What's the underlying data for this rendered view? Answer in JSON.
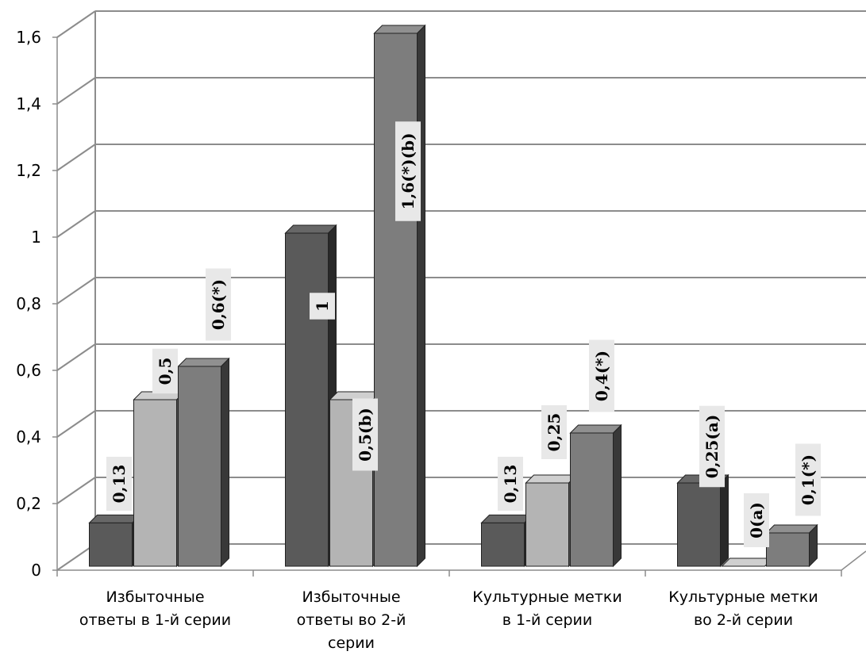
{
  "chart_data": {
    "type": "bar",
    "title": "",
    "xlabel": "",
    "ylabel": "",
    "ylim": [
      0,
      1.6
    ],
    "yticks": [
      "0",
      "0,2",
      "0,4",
      "0,6",
      "0,8",
      "1",
      "1,2",
      "1,4",
      "1,6"
    ],
    "grid": true,
    "three_d": true,
    "categories": [
      [
        "Избыточные",
        "ответы в 1-й серии"
      ],
      [
        "Избыточные",
        "ответы во 2-й",
        "серии"
      ],
      [
        "Культурные метки",
        "в 1-й серии"
      ],
      [
        "Культурные метки",
        "во 2-й серии"
      ]
    ],
    "series": [
      {
        "color": "#5a5a5a",
        "values": [
          0.13,
          1.0,
          0.13,
          0.25
        ],
        "labels": [
          "0,13",
          "1",
          "0,13",
          "0,25(a)"
        ]
      },
      {
        "color": "#b4b4b4",
        "values": [
          0.5,
          0.5,
          0.25,
          0.0
        ],
        "labels": [
          "0,5",
          "0,5(b)",
          "0,25",
          "0(a)"
        ]
      },
      {
        "color": "#7d7d7d",
        "values": [
          0.6,
          1.6,
          0.4,
          0.1
        ],
        "labels": [
          "0,6(*)",
          "1,6(*)(b)",
          "0,4(*)",
          "0,1(*)"
        ]
      }
    ]
  }
}
